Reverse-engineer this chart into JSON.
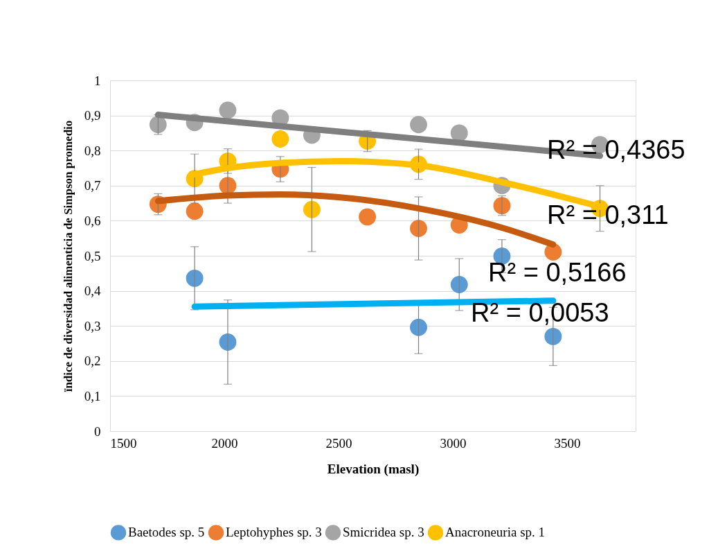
{
  "chart_data": {
    "type": "scatter",
    "xlabel": "Elevation (masl)",
    "ylabel": "ïndice de diversidad alimenticia de Simpson promedio",
    "xlim": [
      1500,
      3800
    ],
    "xticks": [
      1500,
      2000,
      2500,
      3000,
      3500
    ],
    "ylim": [
      0,
      1
    ],
    "yticks": [
      {
        "value": 0,
        "label": "0"
      },
      {
        "value": 0.1,
        "label": "0,1"
      },
      {
        "value": 0.2,
        "label": "0,2"
      },
      {
        "value": 0.3,
        "label": "0,3"
      },
      {
        "value": 0.4,
        "label": "0,4"
      },
      {
        "value": 0.5,
        "label": "0,5"
      },
      {
        "value": 0.6,
        "label": "0,6"
      },
      {
        "value": 0.7,
        "label": "0,7"
      },
      {
        "value": 0.8,
        "label": "0,8"
      },
      {
        "value": 0.9,
        "label": "0,9"
      },
      {
        "value": 1,
        "label": "1"
      }
    ],
    "grid": "y",
    "legend": "bottom",
    "series": [
      {
        "name": "Baetodes sp. 5",
        "color": "#5b9bd5",
        "marker": "circle",
        "x": [
          1870,
          2015,
          2850,
          3028,
          3215,
          3439
        ],
        "values": [
          0.436,
          0.254,
          0.296,
          0.418,
          0.499,
          0.27
        ],
        "errors": [
          0.09,
          0.12,
          0.075,
          0.074,
          0.047,
          0.083
        ]
      },
      {
        "name": "Leptohyphes sp. 3",
        "color": "#ed7d31",
        "marker": "circle",
        "x": [
          1710,
          1870,
          2015,
          2245,
          2626,
          2850,
          3028,
          3215,
          3439
        ],
        "values": [
          0.647,
          0.627,
          0.7,
          0.747,
          0.611,
          0.578,
          0.588,
          0.643,
          0.511
        ],
        "errors": [
          0.03,
          null,
          0.05,
          0.036,
          null,
          0.09,
          null,
          0.028,
          null
        ]
      },
      {
        "name": "Smicridea sp. 3",
        "color": "#a5a5a5",
        "marker": "circle",
        "x": [
          1710,
          1870,
          2015,
          2245,
          2383,
          2850,
          3028,
          3215,
          3644
        ],
        "values": [
          0.874,
          0.88,
          0.915,
          0.893,
          0.844,
          0.874,
          0.85,
          0.7,
          0.817
        ],
        "errors": [
          0.028,
          null,
          null,
          null,
          null,
          null,
          null,
          null,
          null
        ]
      },
      {
        "name": "Anacroneuria sp. 1",
        "color": "#ffc000",
        "marker": "circle",
        "x": [
          1870,
          2015,
          2245,
          2383,
          2626,
          2850,
          3644
        ],
        "values": [
          0.72,
          0.77,
          0.833,
          0.632,
          0.827,
          0.761,
          0.635
        ],
        "errors": [
          0.07,
          0.035,
          null,
          0.12,
          0.03,
          0.043,
          0.065
        ]
      },
      {
        "type": "line",
        "color": "#00b0f0",
        "x": [
          1870,
          3439
        ],
        "values": [
          0.355,
          0.372
        ]
      },
      {
        "type": "line",
        "color": "#c55a11",
        "x": [
          1710,
          2015,
          2245,
          2500,
          2850,
          3215,
          3439
        ],
        "values": [
          0.656,
          0.672,
          0.675,
          0.667,
          0.635,
          0.58,
          0.532
        ]
      },
      {
        "type": "line",
        "color": "#7f7f7f",
        "x": [
          1710,
          3644
        ],
        "values": [
          0.902,
          0.785
        ]
      },
      {
        "type": "line",
        "color": "#ffc000",
        "x": [
          1870,
          2015,
          2245,
          2500,
          2850,
          3215,
          3644
        ],
        "values": [
          0.732,
          0.75,
          0.765,
          0.77,
          0.758,
          0.71,
          0.64
        ]
      }
    ],
    "annotations": [
      "R² = 0,4365",
      "R² = 0,311",
      "R² = 0,5166",
      "R² = 0,0053"
    ]
  }
}
